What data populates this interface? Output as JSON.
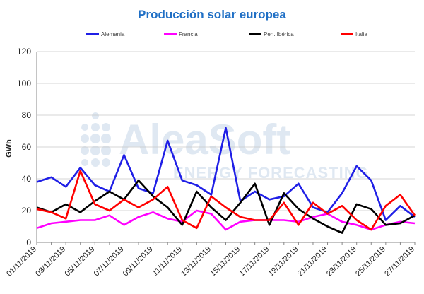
{
  "watermark": {
    "brand": "AleaSoft",
    "tagline": "ENERGY FORECASTING"
  },
  "chart_data": {
    "type": "line",
    "title": "Producción solar europea",
    "xlabel": "",
    "ylabel": "GWh",
    "ylim": [
      0,
      120
    ],
    "yticks": [
      0,
      20,
      40,
      60,
      80,
      100,
      120
    ],
    "grid": "horizontal",
    "legend_position": "top",
    "x": [
      "01/11/2019",
      "02/11/2019",
      "03/11/2019",
      "04/11/2019",
      "05/11/2019",
      "06/11/2019",
      "07/11/2019",
      "08/11/2019",
      "09/11/2019",
      "10/11/2019",
      "11/11/2019",
      "12/11/2019",
      "13/11/2019",
      "14/11/2019",
      "15/11/2019",
      "16/11/2019",
      "17/11/2019",
      "18/11/2019",
      "19/11/2019",
      "20/11/2019",
      "21/11/2019",
      "22/11/2019",
      "23/11/2019",
      "24/11/2019",
      "25/11/2019",
      "26/11/2019",
      "27/11/2019"
    ],
    "x_tick_labels": [
      "01/11/2019",
      "03/11/2019",
      "05/11/2019",
      "07/11/2019",
      "09/11/2019",
      "11/11/2019",
      "13/11/2019",
      "15/11/2019",
      "17/11/2019",
      "19/11/2019",
      "21/11/2019",
      "23/11/2019",
      "25/11/2019",
      "27/11/2019"
    ],
    "series": [
      {
        "name": "Alemania",
        "color": "#1f1fe6",
        "values": [
          38,
          41,
          35,
          47,
          36,
          32,
          55,
          34,
          31,
          64,
          39,
          36,
          30,
          72,
          26,
          32,
          27,
          29,
          37,
          22,
          19,
          31,
          48,
          39,
          14,
          23,
          16
        ]
      },
      {
        "name": "Francia",
        "color": "#ff00ff",
        "values": [
          9,
          12,
          13,
          14,
          14,
          17,
          11,
          16,
          19,
          15,
          13,
          20,
          18,
          8,
          13,
          14,
          14,
          14,
          13,
          16,
          18,
          13,
          11,
          8,
          11,
          13,
          12
        ]
      },
      {
        "name": "Pen. Ibérica",
        "color": "#000000",
        "values": [
          22,
          19,
          24,
          19,
          26,
          32,
          27,
          39,
          29,
          22,
          11,
          32,
          22,
          14,
          25,
          37,
          11,
          31,
          21,
          15,
          10,
          6,
          24,
          21,
          11,
          12,
          17
        ]
      },
      {
        "name": "Italia",
        "color": "#ff0000",
        "values": [
          21,
          19,
          15,
          45,
          24,
          20,
          27,
          22,
          27,
          35,
          14,
          9,
          29,
          22,
          16,
          14,
          14,
          25,
          11,
          25,
          18,
          23,
          14,
          8,
          23,
          30,
          17
        ]
      }
    ]
  }
}
